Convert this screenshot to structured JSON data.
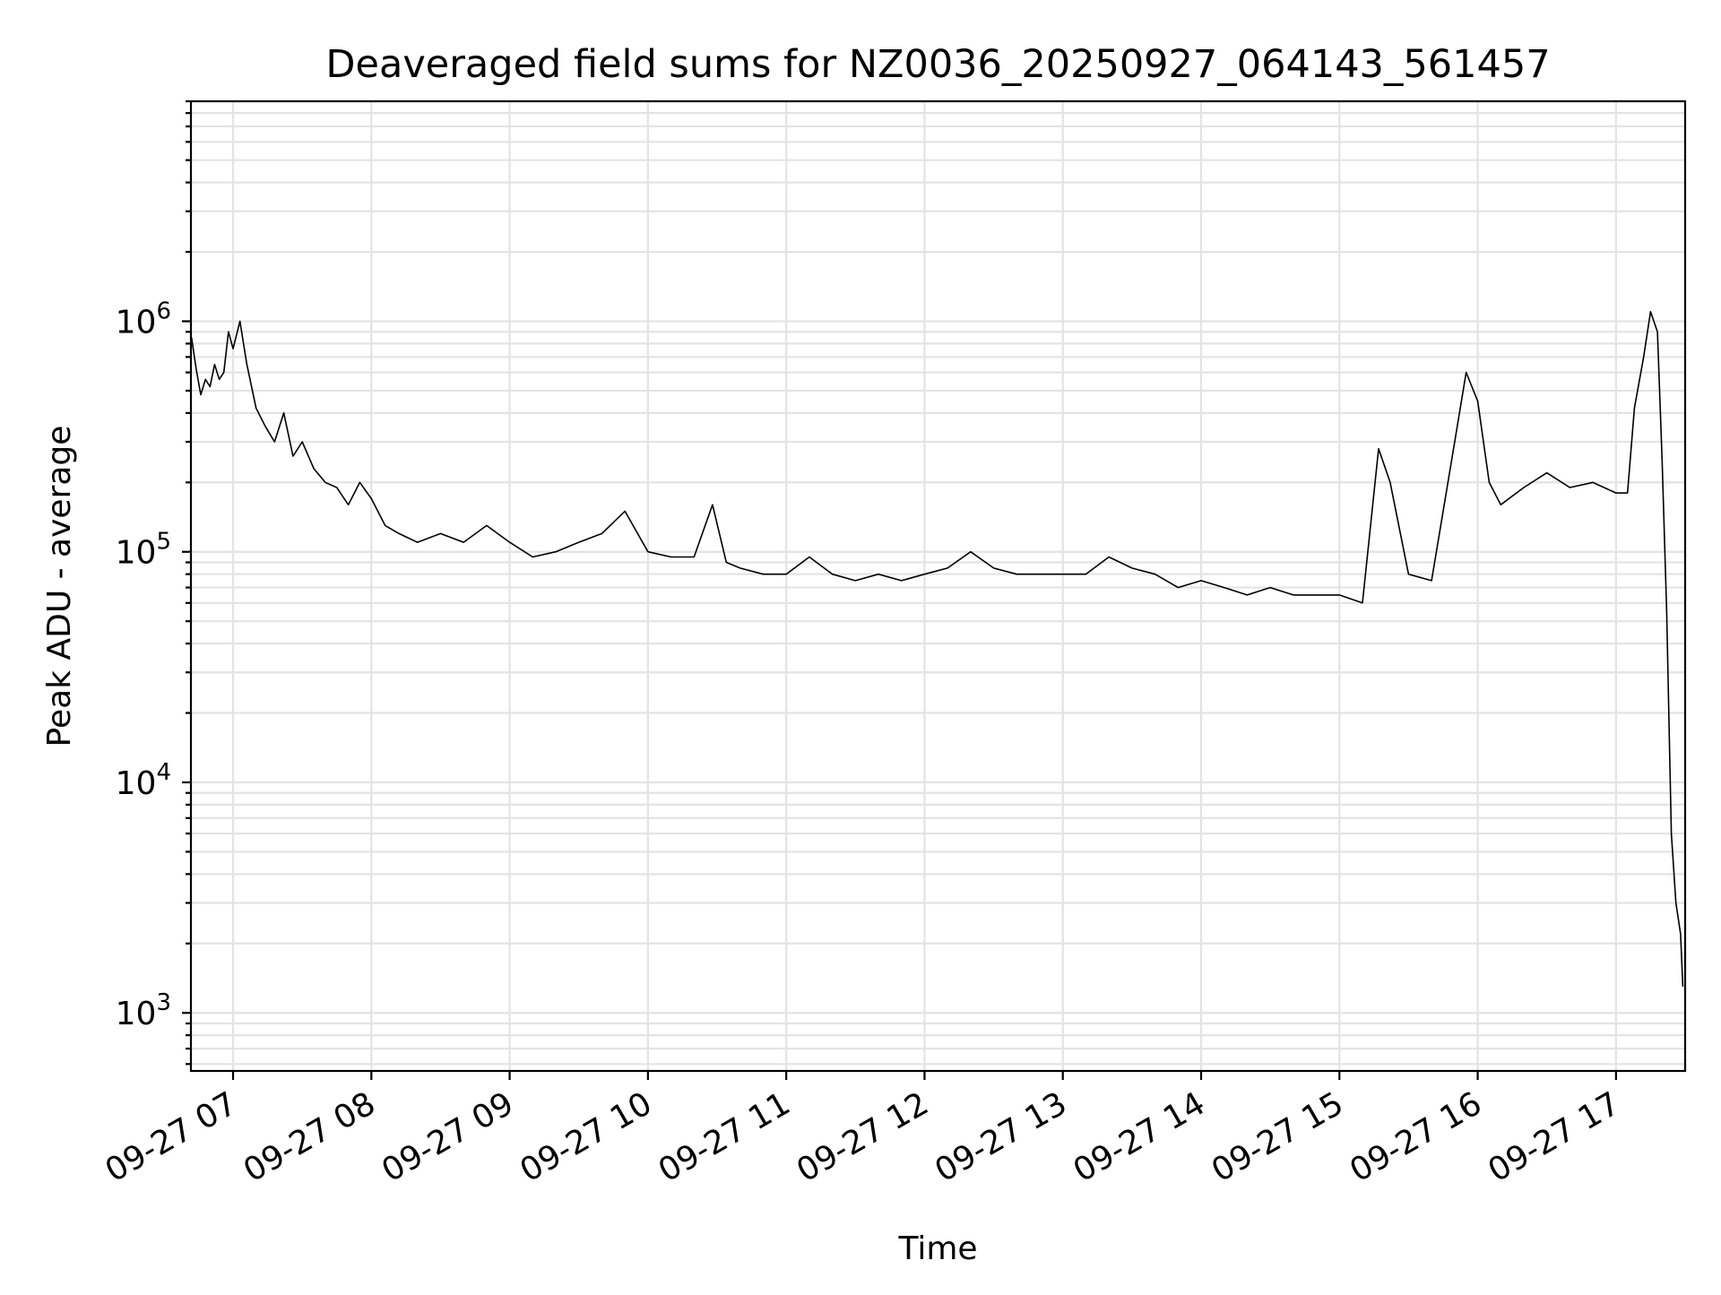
{
  "chart_data": {
    "type": "line",
    "title": "Deaveraged field sums for NZ0036_20250927_064143_561457",
    "xlabel": "Time",
    "ylabel": "Peak ADU - average",
    "xscale": "time",
    "yscale": "log",
    "xlim": [
      "2025-09-27 06:41:43",
      "2025-09-27 17:30:00"
    ],
    "ylim": [
      560,
      9000000
    ],
    "x_ticks": [
      "09-27 07",
      "09-27 08",
      "09-27 09",
      "09-27 10",
      "09-27 11",
      "09-27 12",
      "09-27 13",
      "09-27 14",
      "09-27 15",
      "09-27 16",
      "09-27 17"
    ],
    "y_ticks": [
      {
        "base": "10",
        "exp": "3",
        "value": 1000
      },
      {
        "base": "10",
        "exp": "4",
        "value": 10000
      },
      {
        "base": "10",
        "exp": "5",
        "value": 100000
      },
      {
        "base": "10",
        "exp": "6",
        "value": 1000000
      }
    ],
    "grid": true,
    "legend": "none",
    "line_color": "#000000",
    "series": [
      {
        "points": [
          [
            "06:42",
            850000
          ],
          [
            "06:44",
            620000
          ],
          [
            "06:46",
            480000
          ],
          [
            "06:48",
            560000
          ],
          [
            "06:50",
            520000
          ],
          [
            "06:52",
            650000
          ],
          [
            "06:54",
            560000
          ],
          [
            "06:56",
            600000
          ],
          [
            "06:58",
            900000
          ],
          [
            "07:00",
            760000
          ],
          [
            "07:03",
            1000000
          ],
          [
            "07:06",
            650000
          ],
          [
            "07:10",
            420000
          ],
          [
            "07:14",
            350000
          ],
          [
            "07:18",
            300000
          ],
          [
            "07:22",
            400000
          ],
          [
            "07:26",
            260000
          ],
          [
            "07:30",
            300000
          ],
          [
            "07:35",
            230000
          ],
          [
            "07:40",
            200000
          ],
          [
            "07:45",
            190000
          ],
          [
            "07:50",
            160000
          ],
          [
            "07:55",
            200000
          ],
          [
            "08:00",
            170000
          ],
          [
            "08:06",
            130000
          ],
          [
            "08:12",
            120000
          ],
          [
            "08:20",
            110000
          ],
          [
            "08:30",
            120000
          ],
          [
            "08:40",
            110000
          ],
          [
            "08:50",
            130000
          ],
          [
            "09:00",
            110000
          ],
          [
            "09:10",
            95000
          ],
          [
            "09:20",
            100000
          ],
          [
            "09:30",
            110000
          ],
          [
            "09:40",
            120000
          ],
          [
            "09:50",
            150000
          ],
          [
            "10:00",
            100000
          ],
          [
            "10:10",
            95000
          ],
          [
            "10:20",
            95000
          ],
          [
            "10:28",
            160000
          ],
          [
            "10:34",
            90000
          ],
          [
            "10:40",
            85000
          ],
          [
            "10:50",
            80000
          ],
          [
            "11:00",
            80000
          ],
          [
            "11:10",
            95000
          ],
          [
            "11:20",
            80000
          ],
          [
            "11:30",
            75000
          ],
          [
            "11:40",
            80000
          ],
          [
            "11:50",
            75000
          ],
          [
            "12:00",
            80000
          ],
          [
            "12:10",
            85000
          ],
          [
            "12:20",
            100000
          ],
          [
            "12:30",
            85000
          ],
          [
            "12:40",
            80000
          ],
          [
            "12:50",
            80000
          ],
          [
            "13:00",
            80000
          ],
          [
            "13:10",
            80000
          ],
          [
            "13:20",
            95000
          ],
          [
            "13:30",
            85000
          ],
          [
            "13:40",
            80000
          ],
          [
            "13:50",
            70000
          ],
          [
            "14:00",
            75000
          ],
          [
            "14:10",
            70000
          ],
          [
            "14:20",
            65000
          ],
          [
            "14:30",
            70000
          ],
          [
            "14:40",
            65000
          ],
          [
            "14:50",
            65000
          ],
          [
            "15:00",
            65000
          ],
          [
            "15:10",
            60000
          ],
          [
            "15:17",
            280000
          ],
          [
            "15:22",
            200000
          ],
          [
            "15:30",
            80000
          ],
          [
            "15:40",
            75000
          ],
          [
            "15:50",
            300000
          ],
          [
            "15:55",
            600000
          ],
          [
            "16:00",
            450000
          ],
          [
            "16:05",
            200000
          ],
          [
            "16:10",
            160000
          ],
          [
            "16:20",
            190000
          ],
          [
            "16:30",
            220000
          ],
          [
            "16:40",
            190000
          ],
          [
            "16:50",
            200000
          ],
          [
            "17:00",
            180000
          ],
          [
            "17:05",
            180000
          ],
          [
            "17:08",
            420000
          ],
          [
            "17:12",
            700000
          ],
          [
            "17:15",
            1100000
          ],
          [
            "17:18",
            900000
          ],
          [
            "17:20",
            250000
          ],
          [
            "17:22",
            55000
          ],
          [
            "17:24",
            6000
          ],
          [
            "17:26",
            3000
          ],
          [
            "17:28",
            2200
          ],
          [
            "17:29",
            1300
          ]
        ]
      }
    ]
  }
}
